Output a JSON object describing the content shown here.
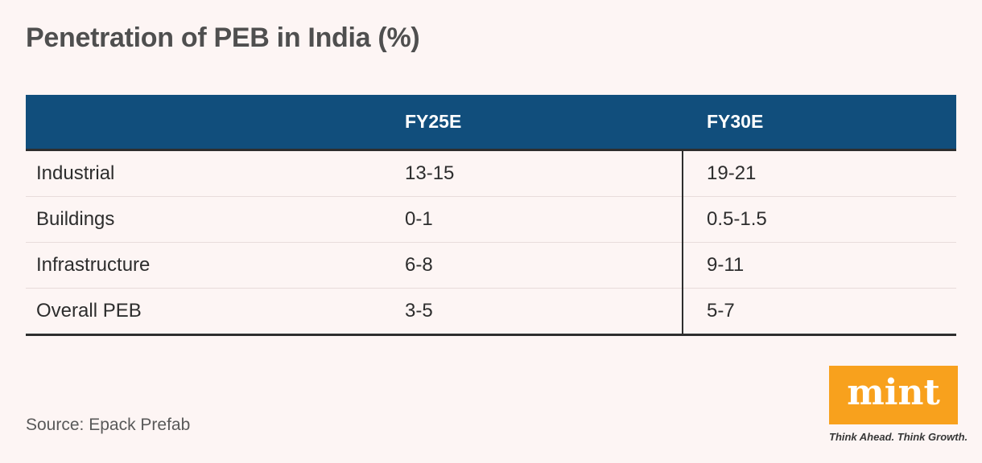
{
  "chart_data": {
    "type": "table",
    "title": "Penetration of PEB in India (%)",
    "columns": [
      "",
      "FY25E",
      "FY30E"
    ],
    "rows": [
      [
        "Industrial",
        "13-15",
        "19-21"
      ],
      [
        "Buildings",
        "0-1",
        "0.5-1.5"
      ],
      [
        "Infrastructure",
        "6-8",
        "9-11"
      ],
      [
        "Overall PEB",
        "3-5",
        "5-7"
      ]
    ],
    "source": "Source: Epack Prefab"
  },
  "logo": {
    "wordmark": "mint",
    "tagline": "Think Ahead. Think Growth."
  },
  "colors": {
    "page_bg": "#fdf5f4",
    "header_bg": "#114e7c",
    "rule_dark": "#2e2e2e",
    "row_separator": "#e8dcdb",
    "logo_orange": "#f8a11d",
    "title_text": "#4f4f4f",
    "body_text": "#2d2d2d"
  }
}
